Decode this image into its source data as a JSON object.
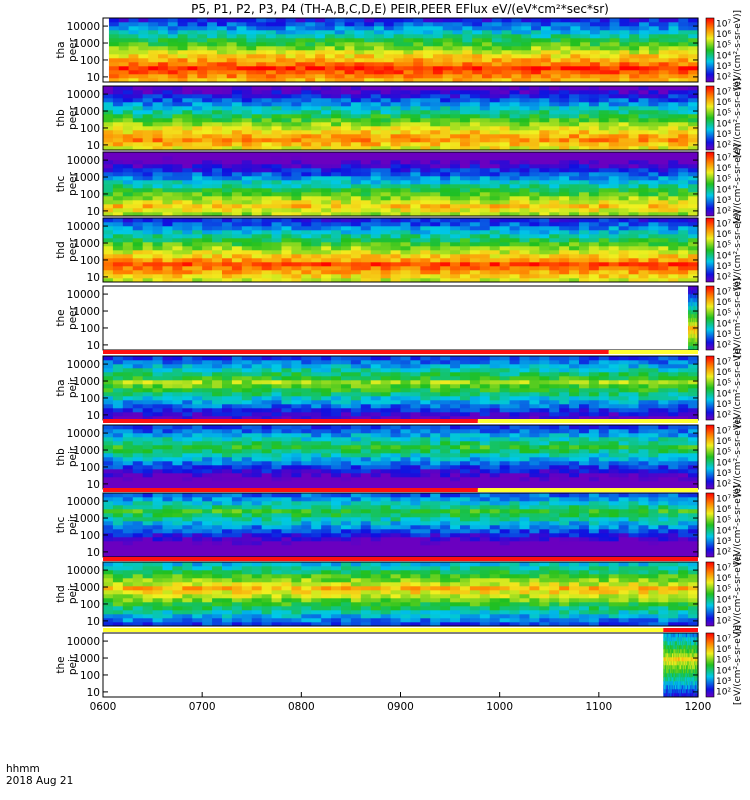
{
  "chart_data": {
    "type": "heatmap",
    "title": "P5, P1, P2, P3, P4 (TH-A,B,C,D,E) PEIR,PEER EFlux eV/(eV*cm²*sec*sr)",
    "xlabel": "hhmm",
    "date_label": "2018 Aug 21",
    "x_ticks": [
      "0600",
      "0700",
      "0800",
      "0900",
      "1000",
      "1100",
      "1200"
    ],
    "x_range": [
      600,
      1200
    ],
    "y_ticks": [
      "10",
      "100",
      "1000",
      "10000"
    ],
    "ylim": [
      5,
      30000
    ],
    "colorbar_label": "[eV/(cm²-s-sr-eV)]",
    "colorbar_ticks": [
      "10²",
      "10³",
      "10⁴",
      "10⁵",
      "10⁶",
      "10⁷"
    ],
    "colors": {
      "low": "#1010d0",
      "mid": "#20c020",
      "high": "#ff2000",
      "flag_red": "#ff1010",
      "flag_yellow": "#ffff30"
    },
    "panels": [
      {
        "label": "tha peer",
        "probe": "tha",
        "species": "peer",
        "data_start": 606,
        "data_end": 1200,
        "peak_log_energy": 1.6,
        "intensity": 0.9
      },
      {
        "label": "thb peer",
        "probe": "thb",
        "species": "peer",
        "data_start": 600,
        "data_end": 1200,
        "peak_log_energy": 1.5,
        "intensity": 0.8
      },
      {
        "label": "thc peer",
        "probe": "thc",
        "species": "peer",
        "data_start": 600,
        "data_end": 1200,
        "peak_log_energy": 1.4,
        "intensity": 0.7
      },
      {
        "label": "thd peer",
        "probe": "thd",
        "species": "peer",
        "data_start": 600,
        "data_end": 1200,
        "peak_log_energy": 1.8,
        "intensity": 0.85
      },
      {
        "label": "the peer",
        "probe": "the",
        "species": "peer",
        "data_start": 1190,
        "data_end": 1200,
        "peak_log_energy": 2.0,
        "intensity": 0.7
      },
      {
        "label": "tha peir",
        "probe": "tha",
        "species": "peir",
        "data_start": 600,
        "data_end": 1200,
        "peak_log_energy": 3.0,
        "intensity": 0.55
      },
      {
        "label": "thb peir",
        "probe": "thb",
        "species": "peir",
        "data_start": 600,
        "data_end": 1200,
        "peak_log_energy": 3.3,
        "intensity": 0.45
      },
      {
        "label": "thc peir",
        "probe": "thc",
        "species": "peir",
        "data_start": 600,
        "data_end": 1200,
        "peak_log_energy": 3.5,
        "intensity": 0.45
      },
      {
        "label": "thd peir",
        "probe": "thd",
        "species": "peir",
        "data_start": 600,
        "data_end": 1200,
        "peak_log_energy": 3.0,
        "intensity": 0.7
      },
      {
        "label": "the peir",
        "probe": "the",
        "species": "peir",
        "data_start": 1165,
        "data_end": 1200,
        "peak_log_energy": 3.0,
        "intensity": 0.65
      }
    ],
    "flag_bars": [
      [
        {
          "start": 600,
          "end": 1110,
          "color": "red"
        },
        {
          "start": 1110,
          "end": 1200,
          "color": "yellow"
        }
      ],
      [
        {
          "start": 600,
          "end": 978,
          "color": "red"
        },
        {
          "start": 978,
          "end": 1200,
          "color": "yellow"
        }
      ],
      [
        {
          "start": 600,
          "end": 978,
          "color": "red"
        },
        {
          "start": 978,
          "end": 1200,
          "color": "yellow"
        }
      ],
      [
        {
          "start": 600,
          "end": 1200,
          "color": "red"
        }
      ],
      [
        {
          "start": 600,
          "end": 1165,
          "color": "yellow"
        },
        {
          "start": 1165,
          "end": 1200,
          "color": "red"
        }
      ]
    ]
  }
}
